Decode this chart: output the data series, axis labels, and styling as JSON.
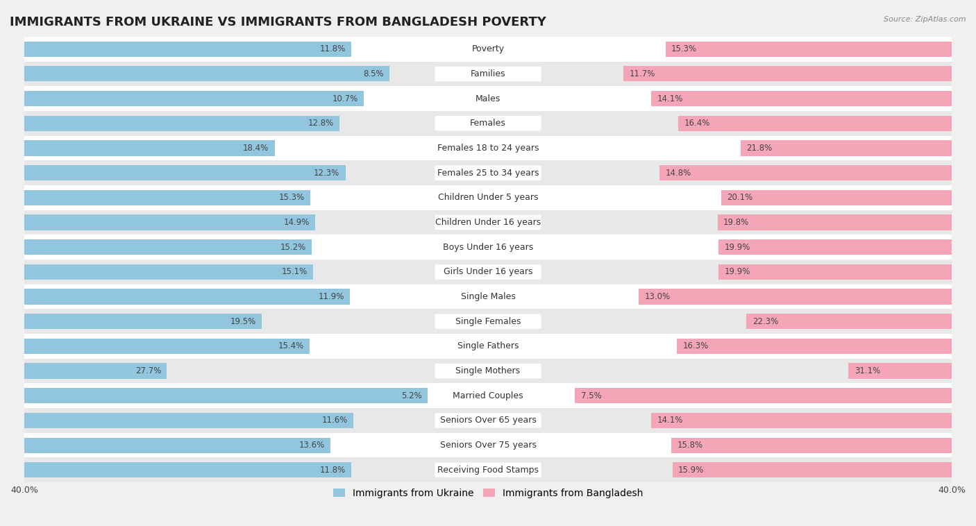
{
  "title": "IMMIGRANTS FROM UKRAINE VS IMMIGRANTS FROM BANGLADESH POVERTY",
  "source": "Source: ZipAtlas.com",
  "categories": [
    "Poverty",
    "Families",
    "Males",
    "Females",
    "Females 18 to 24 years",
    "Females 25 to 34 years",
    "Children Under 5 years",
    "Children Under 16 years",
    "Boys Under 16 years",
    "Girls Under 16 years",
    "Single Males",
    "Single Females",
    "Single Fathers",
    "Single Mothers",
    "Married Couples",
    "Seniors Over 65 years",
    "Seniors Over 75 years",
    "Receiving Food Stamps"
  ],
  "ukraine_values": [
    11.8,
    8.5,
    10.7,
    12.8,
    18.4,
    12.3,
    15.3,
    14.9,
    15.2,
    15.1,
    11.9,
    19.5,
    15.4,
    27.7,
    5.2,
    11.6,
    13.6,
    11.8
  ],
  "bangladesh_values": [
    15.3,
    11.7,
    14.1,
    16.4,
    21.8,
    14.8,
    20.1,
    19.8,
    19.9,
    19.9,
    13.0,
    22.3,
    16.3,
    31.1,
    7.5,
    14.1,
    15.8,
    15.9
  ],
  "ukraine_color": "#92c5de",
  "bangladesh_color": "#f4a6b8",
  "ukraine_label": "Immigrants from Ukraine",
  "bangladesh_label": "Immigrants from Bangladesh",
  "xlim": 40.0,
  "bar_height": 0.62,
  "background_color": "#f0f0f0",
  "row_colors": [
    "#ffffff",
    "#e8e8e8"
  ],
  "title_fontsize": 13,
  "label_fontsize": 9,
  "value_fontsize": 8.5,
  "legend_fontsize": 10,
  "axis_label_fontsize": 9,
  "pill_color": "#ffffff"
}
